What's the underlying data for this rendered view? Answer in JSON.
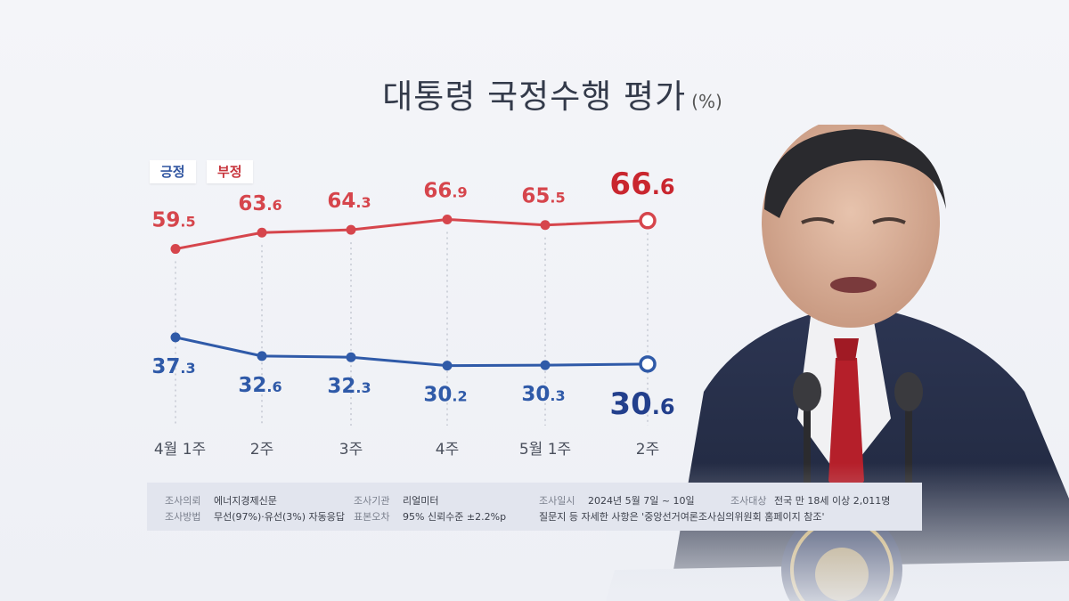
{
  "title": "대통령 국정수행 평가",
  "unit": "(%)",
  "legend": {
    "positive": "긍정",
    "negative": "부정"
  },
  "colors": {
    "positive": "#2f5aa8",
    "negative": "#d6454c",
    "positive_last": "#223f8c",
    "negative_last": "#c9262f"
  },
  "chart_data": {
    "type": "line",
    "title": "대통령 국정수행 평가",
    "unit": "(%)",
    "categories": [
      "4월 1주",
      "2주",
      "3주",
      "4주",
      "5월 1주",
      "2주"
    ],
    "series": [
      {
        "name": "긍정",
        "values": [
          37.3,
          32.6,
          32.3,
          30.2,
          30.3,
          30.6
        ]
      },
      {
        "name": "부정",
        "values": [
          59.5,
          63.6,
          64.3,
          66.9,
          65.5,
          66.6
        ]
      }
    ],
    "legend_position": "top-left",
    "grid": false
  },
  "footer": {
    "row1": [
      {
        "label": "조사의뢰",
        "value": "에너지경제신문"
      },
      {
        "label": "조사기관",
        "value": "리얼미터"
      },
      {
        "label": "조사일시",
        "value": "2024년 5월 7일 ~ 10일"
      },
      {
        "label": "조사대상",
        "value": "전국 만 18세 이상 2,011명"
      }
    ],
    "row2": [
      {
        "label": "조사방법",
        "value": "무선(97%)·유선(3%) 자동응답"
      },
      {
        "label": "표본오차",
        "value": "95% 신뢰수준 ±2.2%p"
      },
      {
        "label": "",
        "value": "질문지 등 자세한 사항은 '중앙선거여론조사심의위원회 홈페이지 참조'"
      }
    ]
  }
}
